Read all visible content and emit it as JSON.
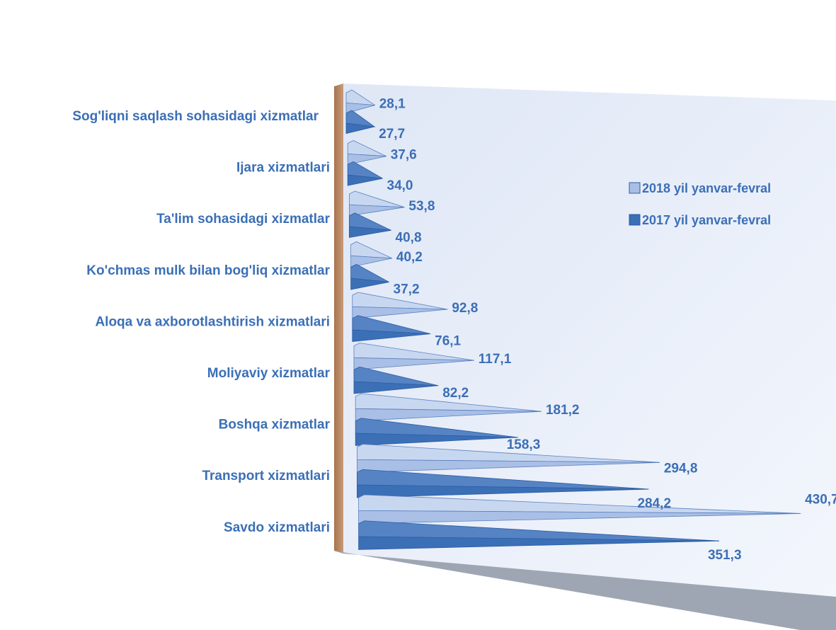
{
  "chart_data": {
    "type": "bar",
    "orientation": "horizontal",
    "style": "3d-cone",
    "categories": [
      "Sog'liqni saqlash sohasidagi xizmatlar",
      "Ijara xizmatlari",
      "Ta'lim sohasidagi  xizmatlar",
      "Ko'chmas mulk bilan bog'liq xizmatlar",
      "Aloqa va axborotlashtirish xizmatlari",
      "Moliyaviy xizmatlar",
      "Boshqa xizmatlar",
      "Transport xizmatlari",
      "Savdo xizmatlari"
    ],
    "series": [
      {
        "name": "2018 yil yanvar-fevral",
        "values": [
          28.1,
          37.6,
          53.8,
          40.2,
          92.8,
          117.1,
          181.2,
          294.8,
          430.7
        ],
        "labels": [
          "28,1",
          "37,6",
          "53,8",
          "40,2",
          "92,8",
          "117,1",
          "181,2",
          "294,8",
          "430,7"
        ],
        "color": "#a9bfe6"
      },
      {
        "name": "2017 yil yanvar-fevral",
        "values": [
          27.7,
          34.0,
          40.8,
          37.2,
          76.1,
          82.2,
          158.3,
          284.2,
          351.3
        ],
        "labels": [
          "27,7",
          "34,0",
          "40,8",
          "37,2",
          "76,1",
          "82,2",
          "158,3",
          "284,2",
          "351,3"
        ],
        "color": "#3b6fb6"
      }
    ],
    "legend_position": "right",
    "grid": false,
    "label_color": "#3b6fb6",
    "wall_color": "#e8eef9",
    "floor_color": "#9ea6b3"
  }
}
